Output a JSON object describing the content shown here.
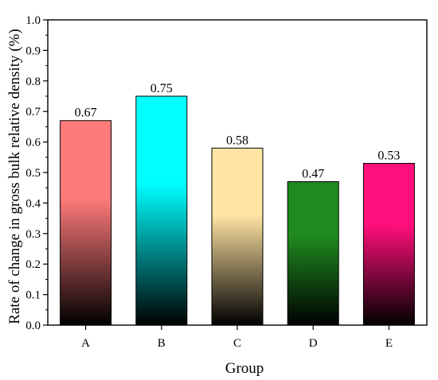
{
  "chart_data": {
    "type": "bar",
    "title": "",
    "xlabel": "Group",
    "ylabel": "Rate of change in gross bulk relative density (%)",
    "categories": [
      "A",
      "B",
      "C",
      "D",
      "E"
    ],
    "values": [
      0.67,
      0.75,
      0.58,
      0.47,
      0.53
    ],
    "data_labels": [
      "0.67",
      "0.75",
      "0.58",
      "0.47",
      "0.53"
    ],
    "ylim": [
      0,
      1.0
    ],
    "yticks": [
      0.0,
      0.1,
      0.2,
      0.3,
      0.4,
      0.5,
      0.6,
      0.7,
      0.8,
      0.9,
      1.0
    ],
    "ytick_labels": [
      "0.0",
      "0.1",
      "0.2",
      "0.3",
      "0.4",
      "0.5",
      "0.6",
      "0.7",
      "0.8",
      "0.9",
      "1.0"
    ],
    "grid": false,
    "legend": "none",
    "bar_colors": [
      "#ff7a7a",
      "#00ffff",
      "#ffe4a3",
      "#1f8a1f",
      "#ff0f7b"
    ],
    "bar_fill": "vertical gradient from series color at top to black at bottom",
    "border_color": "#000000"
  }
}
